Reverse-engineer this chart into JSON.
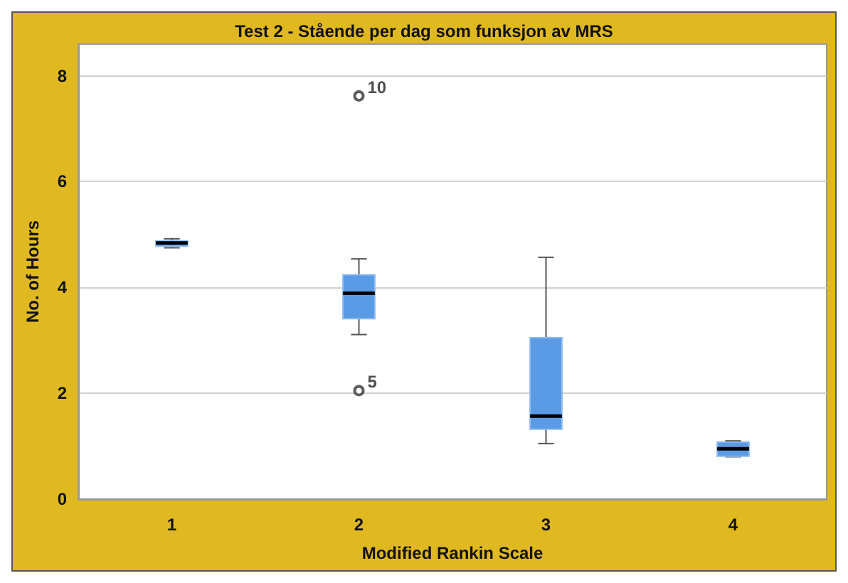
{
  "chart_data": {
    "type": "box",
    "title": "Test 2 - Stående per dag som funksjon av MRS",
    "xlabel": "Modified Rankin Scale",
    "ylabel": "No. of Hours",
    "categories": [
      "1",
      "2",
      "3",
      "4"
    ],
    "color": "#5a9be6",
    "boxes": [
      {
        "low": 4.75,
        "q1": 4.78,
        "median": 4.84,
        "q3": 4.88,
        "high": 4.92
      },
      {
        "low": 3.11,
        "q1": 3.41,
        "median": 3.89,
        "q3": 4.24,
        "high": 4.54,
        "outliers": [
          2.05,
          7.62
        ]
      },
      {
        "low": 1.05,
        "q1": 1.32,
        "median": 1.57,
        "q3": 3.05,
        "high": 4.57
      },
      {
        "low": 0.8,
        "q1": 0.81,
        "median": 0.95,
        "q3": 1.08,
        "high": 1.1
      }
    ],
    "ylim": [
      0,
      8.6
    ],
    "yticks": [
      0,
      2,
      4,
      6,
      8
    ],
    "grid": "y",
    "annotations": [
      "5",
      "10"
    ]
  }
}
